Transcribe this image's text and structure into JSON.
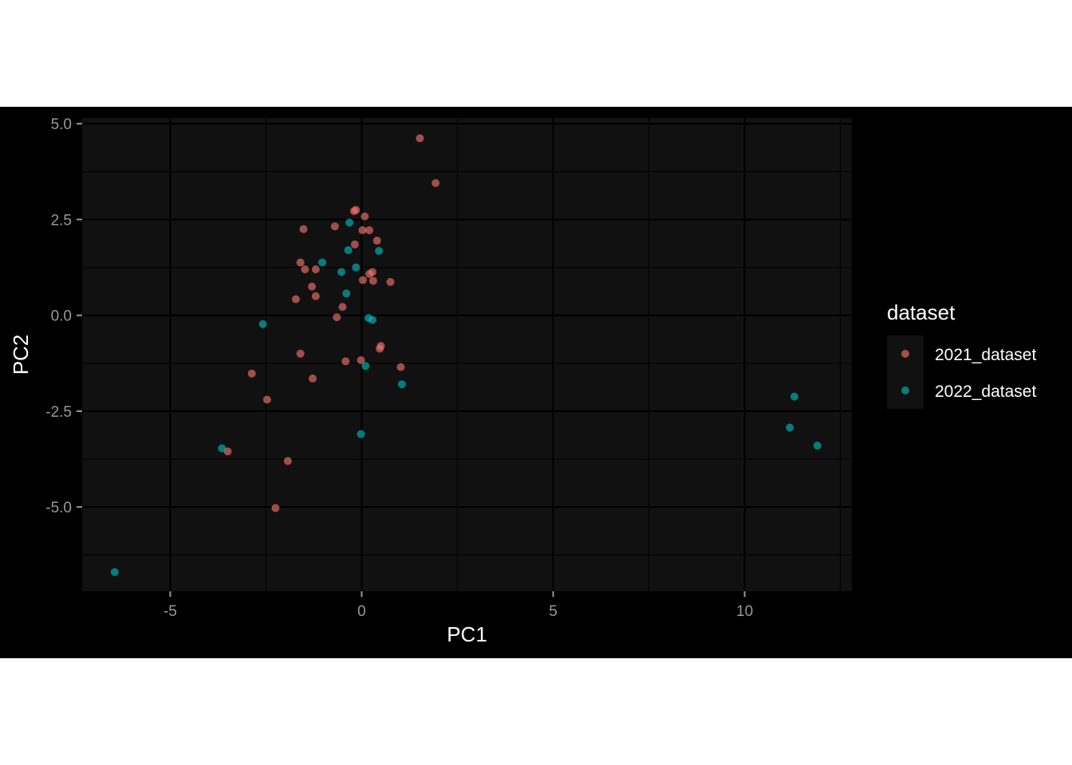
{
  "chart_data": {
    "type": "scatter",
    "xlabel": "PC1",
    "ylabel": "PC2",
    "xlim": [
      -7.3,
      12.8
    ],
    "ylim": [
      -7.2,
      5.15
    ],
    "x_ticks": [
      -5,
      0,
      5,
      10
    ],
    "x_tick_labels": [
      "-5",
      "0",
      "5",
      "10"
    ],
    "y_ticks": [
      5.0,
      2.5,
      0.0,
      -2.5,
      -5.0
    ],
    "y_tick_labels": [
      "5.0",
      "2.5",
      "0.0",
      "-2.5",
      "-5.0"
    ],
    "grid": true,
    "legend": {
      "title": "dataset",
      "position": "right"
    },
    "colors": {
      "panel_background": "#111111",
      "grid": "#000000",
      "outer_background": "#000000"
    },
    "series": [
      {
        "name": "2021_dataset",
        "color": "#f8766d",
        "points": [
          [
            1.52,
            4.62
          ],
          [
            1.93,
            3.45
          ],
          [
            -0.2,
            2.72
          ],
          [
            -0.15,
            2.75
          ],
          [
            0.08,
            2.58
          ],
          [
            -1.52,
            2.25
          ],
          [
            -0.7,
            2.32
          ],
          [
            0.02,
            2.22
          ],
          [
            0.2,
            2.22
          ],
          [
            0.4,
            1.95
          ],
          [
            -0.18,
            1.85
          ],
          [
            -1.6,
            1.38
          ],
          [
            -1.48,
            1.2
          ],
          [
            -1.2,
            1.2
          ],
          [
            0.28,
            1.13
          ],
          [
            0.2,
            1.08
          ],
          [
            0.03,
            0.92
          ],
          [
            0.3,
            0.9
          ],
          [
            0.75,
            0.87
          ],
          [
            -1.3,
            0.75
          ],
          [
            -1.2,
            0.5
          ],
          [
            -1.72,
            0.42
          ],
          [
            -0.5,
            0.22
          ],
          [
            -0.65,
            -0.05
          ],
          [
            -1.6,
            -1.0
          ],
          [
            -0.02,
            -1.17
          ],
          [
            -0.42,
            -1.2
          ],
          [
            1.02,
            -1.35
          ],
          [
            0.5,
            -0.8
          ],
          [
            0.47,
            -0.87
          ],
          [
            -2.87,
            -1.52
          ],
          [
            -1.28,
            -1.65
          ],
          [
            -2.47,
            -2.2
          ],
          [
            -3.5,
            -3.55
          ],
          [
            -1.93,
            -3.8
          ],
          [
            -2.25,
            -5.03
          ]
        ]
      },
      {
        "name": "2022_dataset",
        "color": "#00bfc4",
        "points": [
          [
            -0.32,
            2.42
          ],
          [
            -0.35,
            1.7
          ],
          [
            0.45,
            1.68
          ],
          [
            -1.03,
            1.38
          ],
          [
            -0.15,
            1.25
          ],
          [
            -0.53,
            1.13
          ],
          [
            -0.4,
            0.57
          ],
          [
            0.18,
            -0.07
          ],
          [
            0.28,
            -0.12
          ],
          [
            -2.58,
            -0.23
          ],
          [
            0.1,
            -1.32
          ],
          [
            1.05,
            -1.8
          ],
          [
            -0.02,
            -3.1
          ],
          [
            -3.65,
            -3.47
          ],
          [
            -6.45,
            -6.7
          ],
          [
            11.3,
            -2.12
          ],
          [
            11.18,
            -2.93
          ],
          [
            11.9,
            -3.4
          ]
        ]
      }
    ]
  }
}
